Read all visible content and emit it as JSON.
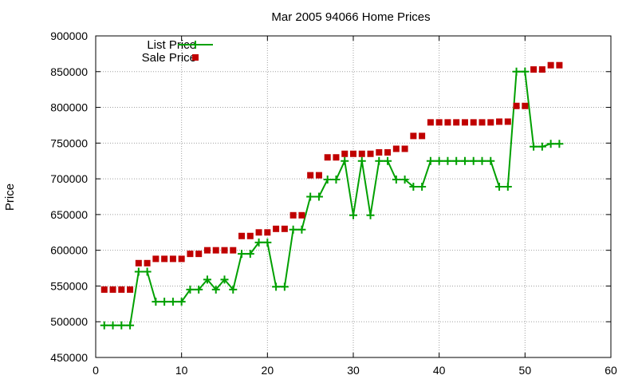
{
  "chart_data": {
    "type": "line",
    "title": "Mar 2005 94066 Home Prices",
    "xlabel": "",
    "ylabel": "Price",
    "xlim": [
      0,
      60
    ],
    "ylim": [
      450000,
      900000
    ],
    "xticks": [
      0,
      10,
      20,
      30,
      40,
      50,
      60
    ],
    "yticks": [
      450000,
      500000,
      550000,
      600000,
      650000,
      700000,
      750000,
      800000,
      850000,
      900000
    ],
    "grid": true,
    "legend_position": "top-left",
    "series": [
      {
        "name": "List Price",
        "style": "line-plus",
        "color": "#00a000",
        "x": [
          1,
          2,
          3,
          4,
          5,
          6,
          7,
          8,
          9,
          10,
          11,
          12,
          13,
          14,
          15,
          16,
          17,
          18,
          19,
          20,
          21,
          22,
          23,
          24,
          25,
          26,
          27,
          28,
          29,
          30,
          31,
          32,
          33,
          34,
          35,
          36,
          37,
          38,
          39,
          40,
          41,
          42,
          43,
          44,
          45,
          46,
          47,
          48,
          49,
          50,
          51,
          52,
          53,
          54
        ],
        "y": [
          495000,
          495000,
          495000,
          495000,
          570000,
          570000,
          528000,
          528000,
          528000,
          528000,
          545000,
          545000,
          559000,
          545000,
          559000,
          545000,
          595000,
          595000,
          611000,
          611000,
          549000,
          549000,
          629000,
          629000,
          675000,
          675000,
          699000,
          699000,
          725000,
          649000,
          725000,
          649000,
          725000,
          725000,
          699000,
          699000,
          689000,
          689000,
          725000,
          725000,
          725000,
          725000,
          725000,
          725000,
          725000,
          725000,
          689000,
          689000,
          850000,
          850000,
          745000,
          745000,
          749000,
          749000
        ]
      },
      {
        "name": "Sale Price",
        "style": "square-marker",
        "color": "#c00000",
        "x": [
          1,
          2,
          3,
          4,
          5,
          6,
          7,
          8,
          9,
          10,
          11,
          12,
          13,
          14,
          15,
          16,
          17,
          18,
          19,
          20,
          21,
          22,
          23,
          24,
          25,
          26,
          27,
          28,
          29,
          30,
          31,
          32,
          33,
          34,
          35,
          36,
          37,
          38,
          39,
          40,
          41,
          42,
          43,
          44,
          45,
          46,
          47,
          48,
          49,
          50,
          51,
          52,
          53,
          54
        ],
        "y": [
          545000,
          545000,
          545000,
          545000,
          582000,
          582000,
          588000,
          588000,
          588000,
          588000,
          595000,
          595000,
          600000,
          600000,
          600000,
          600000,
          620000,
          620000,
          625000,
          625000,
          630000,
          630000,
          649000,
          649000,
          705000,
          705000,
          730000,
          730000,
          735000,
          735000,
          735000,
          735000,
          737000,
          737000,
          742000,
          742000,
          760000,
          760000,
          779000,
          779000,
          779000,
          779000,
          779000,
          779000,
          779000,
          779000,
          780000,
          780000,
          802000,
          802000,
          853000,
          853000,
          859000,
          859000
        ]
      }
    ]
  }
}
